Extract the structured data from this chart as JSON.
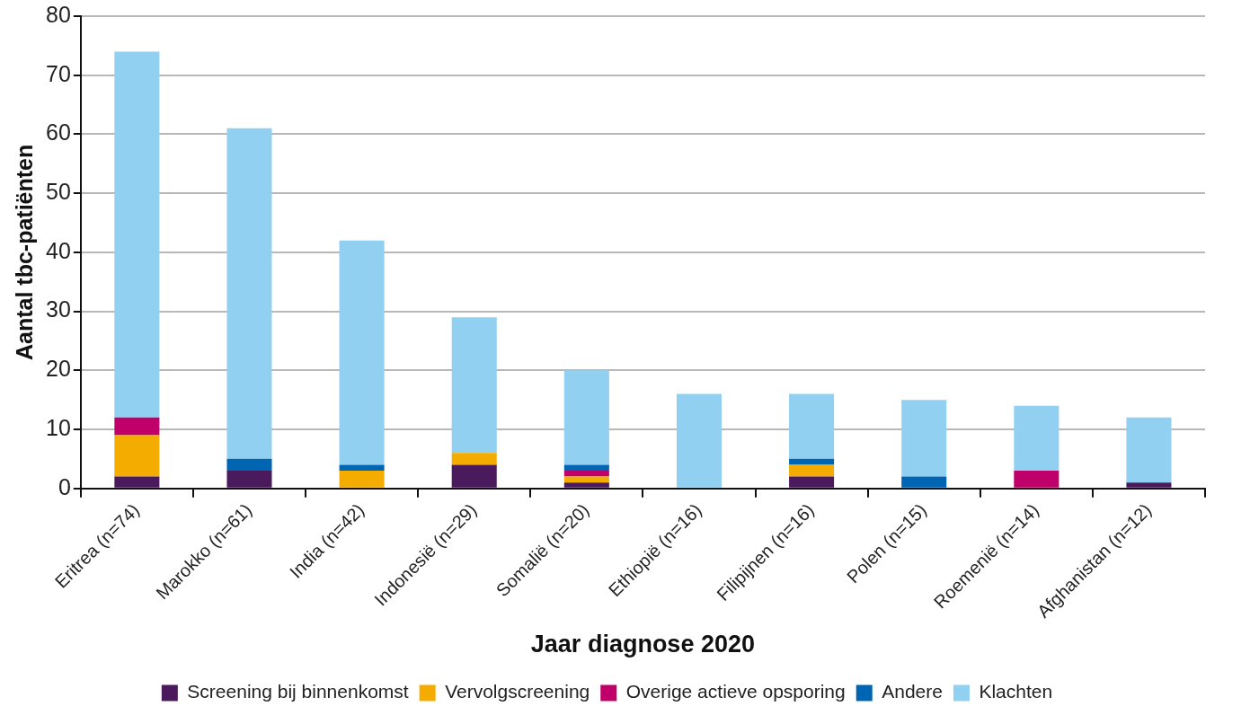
{
  "chart_data": {
    "type": "bar",
    "stacked": true,
    "xlabel": "Jaar diagnose 2020",
    "ylabel": "Aantal tbc-patiënten",
    "categories": [
      "Eritrea (n=74)",
      "Marokko (n=61)",
      "India (n=42)",
      "Indonesië (n=29)",
      "Somalië (n=20)",
      "Ethiopië (n=16)",
      "Filipijnen (n=16)",
      "Polen (n=15)",
      "Roemenië (n=14)",
      "Afghanistan (n=12)"
    ],
    "series": [
      {
        "name": "Screening bij binnenkomst",
        "color": "#4a1a5c",
        "values": [
          2,
          3,
          0,
          4,
          1,
          0,
          2,
          0,
          0,
          1
        ]
      },
      {
        "name": "Vervolgscreening",
        "color": "#f5ac00",
        "values": [
          7,
          0,
          3,
          2,
          1,
          0,
          2,
          0,
          0,
          0
        ]
      },
      {
        "name": "Overige actieve opsporing",
        "color": "#c0006a",
        "values": [
          3,
          0,
          0,
          0,
          1,
          0,
          0,
          0,
          3,
          0
        ]
      },
      {
        "name": "Andere",
        "color": "#0066b3",
        "values": [
          0,
          2,
          1,
          0,
          1,
          0,
          1,
          2,
          0,
          0
        ]
      },
      {
        "name": "Klachten",
        "color": "#92d0f2",
        "values": [
          62,
          56,
          38,
          23,
          16,
          16,
          11,
          13,
          11,
          11
        ]
      }
    ],
    "ylim": [
      0,
      80
    ],
    "yticks": [
      0,
      10,
      20,
      30,
      40,
      50,
      60,
      70,
      80
    ],
    "grid": "y",
    "legend": "bottom"
  }
}
